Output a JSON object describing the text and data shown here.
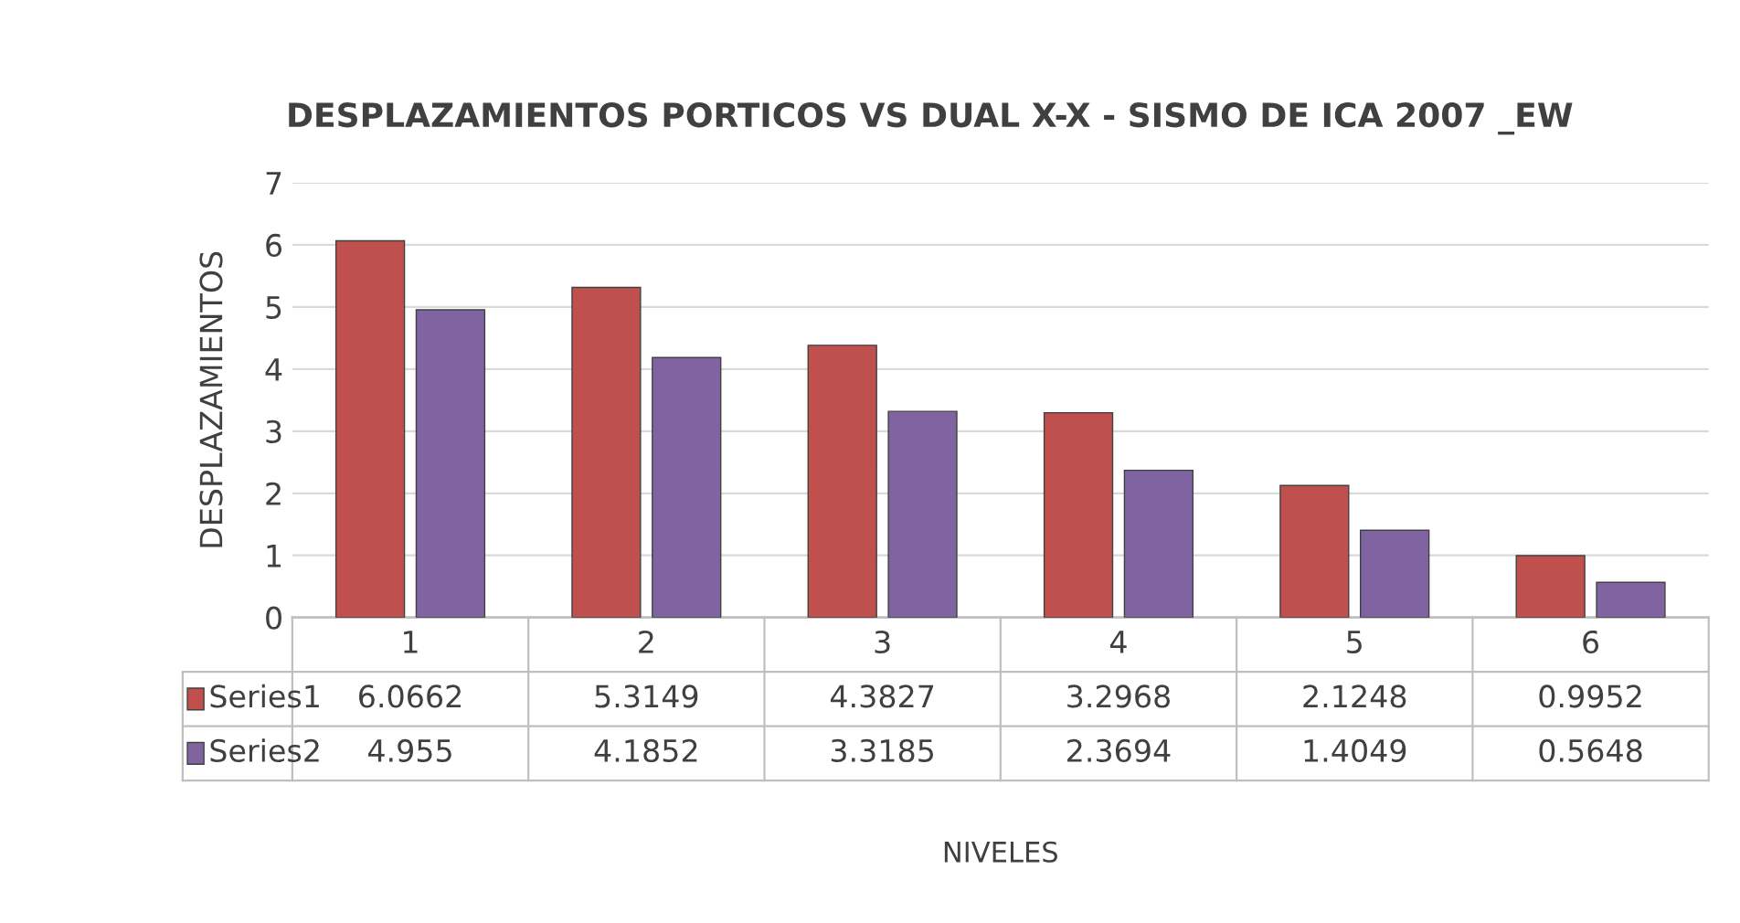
{
  "chart_data": {
    "type": "bar",
    "title": "DESPLAZAMIENTOS PORTICOS VS DUAL X-X - SISMO DE ICA 2007 _EW",
    "annotations": [
      "NIVELES"
    ],
    "ylabel": "DESPLAZAMIENTOS",
    "categories": [
      "1",
      "2",
      "3",
      "4",
      "5",
      "6"
    ],
    "series": [
      {
        "name": "Series1",
        "color": "#c0504d",
        "values": [
          6.0662,
          5.3149,
          4.3827,
          3.2968,
          2.1248,
          0.9952
        ]
      },
      {
        "name": "Series2",
        "color": "#8064a2",
        "values": [
          4.955,
          4.1852,
          3.3185,
          2.3694,
          1.4049,
          0.5648
        ]
      }
    ],
    "ylim": [
      0,
      7
    ],
    "yticks": [
      0,
      1,
      2,
      3,
      4,
      5,
      6,
      7
    ],
    "grid": "y",
    "legend": "bottom left",
    "data_labels": true
  }
}
